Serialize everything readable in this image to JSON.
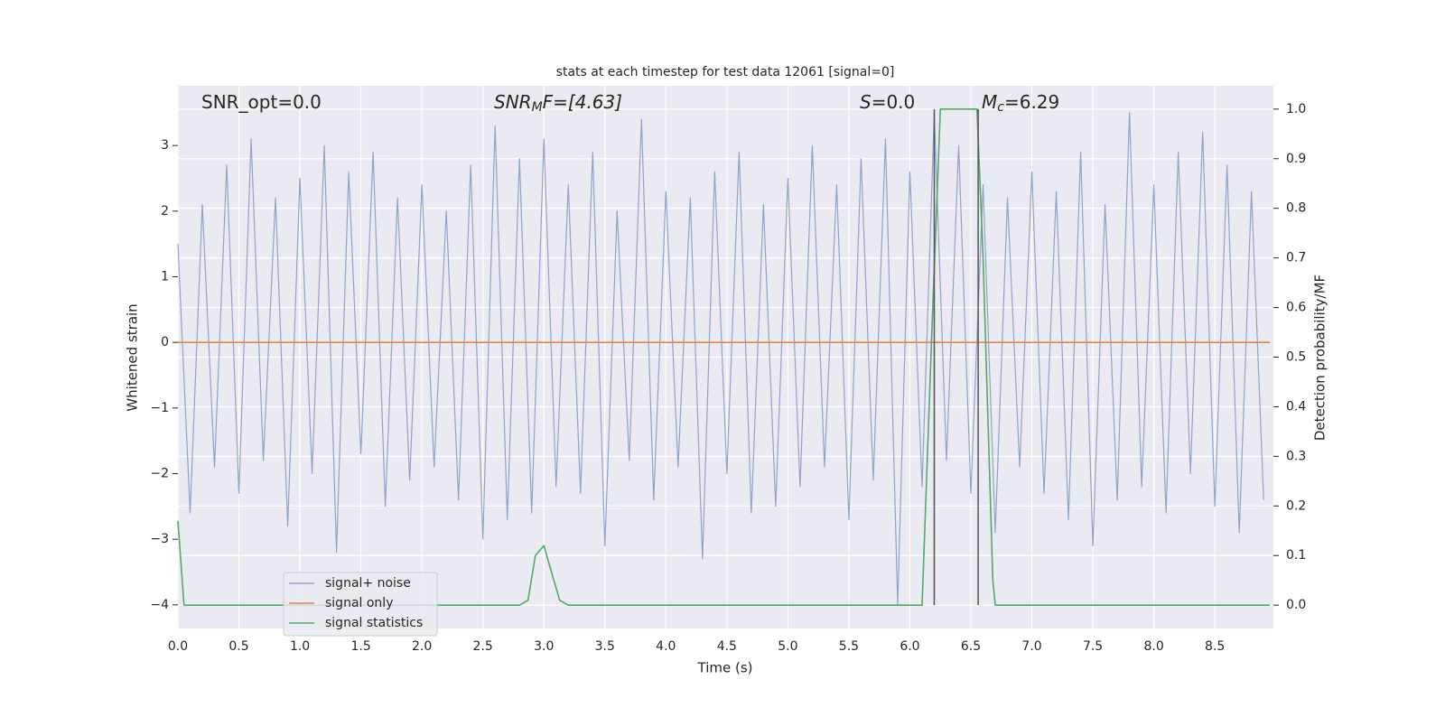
{
  "chart_data": {
    "type": "line",
    "title": "stats at each timestep for test data 12061 [signal=0]",
    "xlabel": "Time (s)",
    "ylabel": "Whitened strain",
    "y2label": "Detection probability/MF",
    "annotations": [
      {
        "main": "SNR_opt=0.0"
      },
      {
        "main": "SNR",
        "sub": "M",
        "after": "F=[4.63]",
        "italic": true
      },
      {
        "main": "S",
        "after": "=0.0",
        "italic": true
      },
      {
        "main": "M",
        "sub": "c",
        "after": "=6.29",
        "italic": true
      }
    ],
    "xlim": [
      0,
      8.98
    ],
    "ylim": [
      -4.36,
      3.91
    ],
    "y2lim": [
      -0.047,
      1.047
    ],
    "xticks": [
      {
        "value": 0,
        "label": "0.0"
      },
      0.5,
      {
        "value": 1,
        "label": "1.0"
      },
      1.5,
      {
        "value": 2,
        "label": "2.0"
      },
      2.5,
      {
        "value": 3,
        "label": "3.0"
      },
      3.5,
      {
        "value": 4,
        "label": "4.0"
      },
      4.5,
      {
        "value": 5,
        "label": "5.0"
      },
      5.5,
      {
        "value": 6,
        "label": "6.0"
      },
      6.5,
      {
        "value": 7,
        "label": "7.0"
      },
      7.5,
      {
        "value": 8,
        "label": "8.0"
      },
      8.5
    ],
    "yticks": [
      {
        "value": -4,
        "label": "−4"
      },
      {
        "value": -3,
        "label": "−3"
      },
      {
        "value": -2,
        "label": "−2"
      },
      {
        "value": -1,
        "label": "−1"
      },
      0,
      1,
      2,
      3
    ],
    "y2ticks": [
      {
        "value": 0,
        "label": "0.0"
      },
      0.1,
      0.2,
      0.3,
      0.4,
      0.5,
      0.6,
      0.7,
      0.8,
      0.9,
      {
        "value": 1,
        "label": "1.0"
      }
    ],
    "grid": true,
    "legend": "lower left",
    "vlines": {
      "color": "#555555",
      "x": [
        6.2,
        6.56
      ]
    },
    "series": [
      {
        "name": "signal+ noise",
        "color": "#8fa3cc",
        "x": [
          0.0,
          0.1,
          0.2,
          0.3,
          0.4,
          0.5,
          0.6,
          0.7,
          0.8,
          0.9,
          1.0,
          1.1,
          1.2,
          1.3,
          1.4,
          1.5,
          1.6,
          1.7,
          1.8,
          1.9,
          2.0,
          2.1,
          2.2,
          2.3,
          2.4,
          2.5,
          2.6,
          2.7,
          2.8,
          2.9,
          3.0,
          3.1,
          3.2,
          3.3,
          3.4,
          3.5,
          3.6,
          3.7,
          3.8,
          3.9,
          4.0,
          4.1,
          4.2,
          4.3,
          4.4,
          4.5,
          4.6,
          4.7,
          4.8,
          4.9,
          5.0,
          5.1,
          5.2,
          5.3,
          5.4,
          5.5,
          5.6,
          5.7,
          5.8,
          5.9,
          6.0,
          6.1,
          6.2,
          6.3,
          6.4,
          6.5,
          6.6,
          6.7,
          6.8,
          6.9,
          7.0,
          7.1,
          7.2,
          7.3,
          7.4,
          7.5,
          7.6,
          7.7,
          7.8,
          7.9,
          8.0,
          8.1,
          8.2,
          8.3,
          8.4,
          8.5,
          8.6,
          8.7,
          8.8,
          8.9
        ],
        "values": [
          1.5,
          -2.6,
          2.1,
          -1.9,
          2.7,
          -2.3,
          3.1,
          -1.8,
          2.2,
          -2.8,
          2.5,
          -2.0,
          3.0,
          -3.2,
          2.6,
          -1.7,
          2.9,
          -2.5,
          2.2,
          -2.1,
          2.4,
          -1.9,
          2.0,
          -2.4,
          2.7,
          -3.0,
          3.3,
          -2.7,
          2.8,
          -2.6,
          3.1,
          -2.2,
          2.4,
          -2.3,
          2.9,
          -3.1,
          2.0,
          -1.8,
          3.4,
          -2.4,
          2.3,
          -1.9,
          2.2,
          -3.3,
          2.6,
          -2.0,
          2.9,
          -2.6,
          2.1,
          -2.5,
          2.5,
          -2.2,
          3.0,
          -1.9,
          2.4,
          -2.7,
          2.8,
          -2.1,
          3.1,
          -4.0,
          2.6,
          -2.2,
          3.5,
          -1.8,
          3.0,
          -2.3,
          2.4,
          -2.9,
          2.2,
          -1.9,
          2.6,
          -2.3,
          2.3,
          -2.7,
          2.9,
          -3.1,
          2.1,
          -2.4,
          3.5,
          -2.2,
          2.4,
          -2.6,
          2.9,
          -2.0,
          3.2,
          -2.5,
          2.7,
          -2.9,
          2.3,
          -2.4
        ]
      },
      {
        "name": "signal only",
        "color": "#dd8452",
        "x": [
          0.0,
          8.95
        ],
        "values": [
          0,
          0
        ]
      },
      {
        "name": "signal statistics",
        "color": "#55a868",
        "axis": "y2",
        "x": [
          0.0,
          0.05,
          0.1,
          2.8,
          2.87,
          2.93,
          3.0,
          3.07,
          3.13,
          3.2,
          6.1,
          6.18,
          6.25,
          6.55,
          6.6,
          6.68,
          6.7,
          8.0,
          8.95
        ],
        "values": [
          0.17,
          0.0,
          0.0,
          0.0,
          0.01,
          0.1,
          0.12,
          0.06,
          0.01,
          0.0,
          0.0,
          0.55,
          1.0,
          1.0,
          0.7,
          0.05,
          0.0,
          0.0,
          0.0
        ]
      }
    ]
  }
}
